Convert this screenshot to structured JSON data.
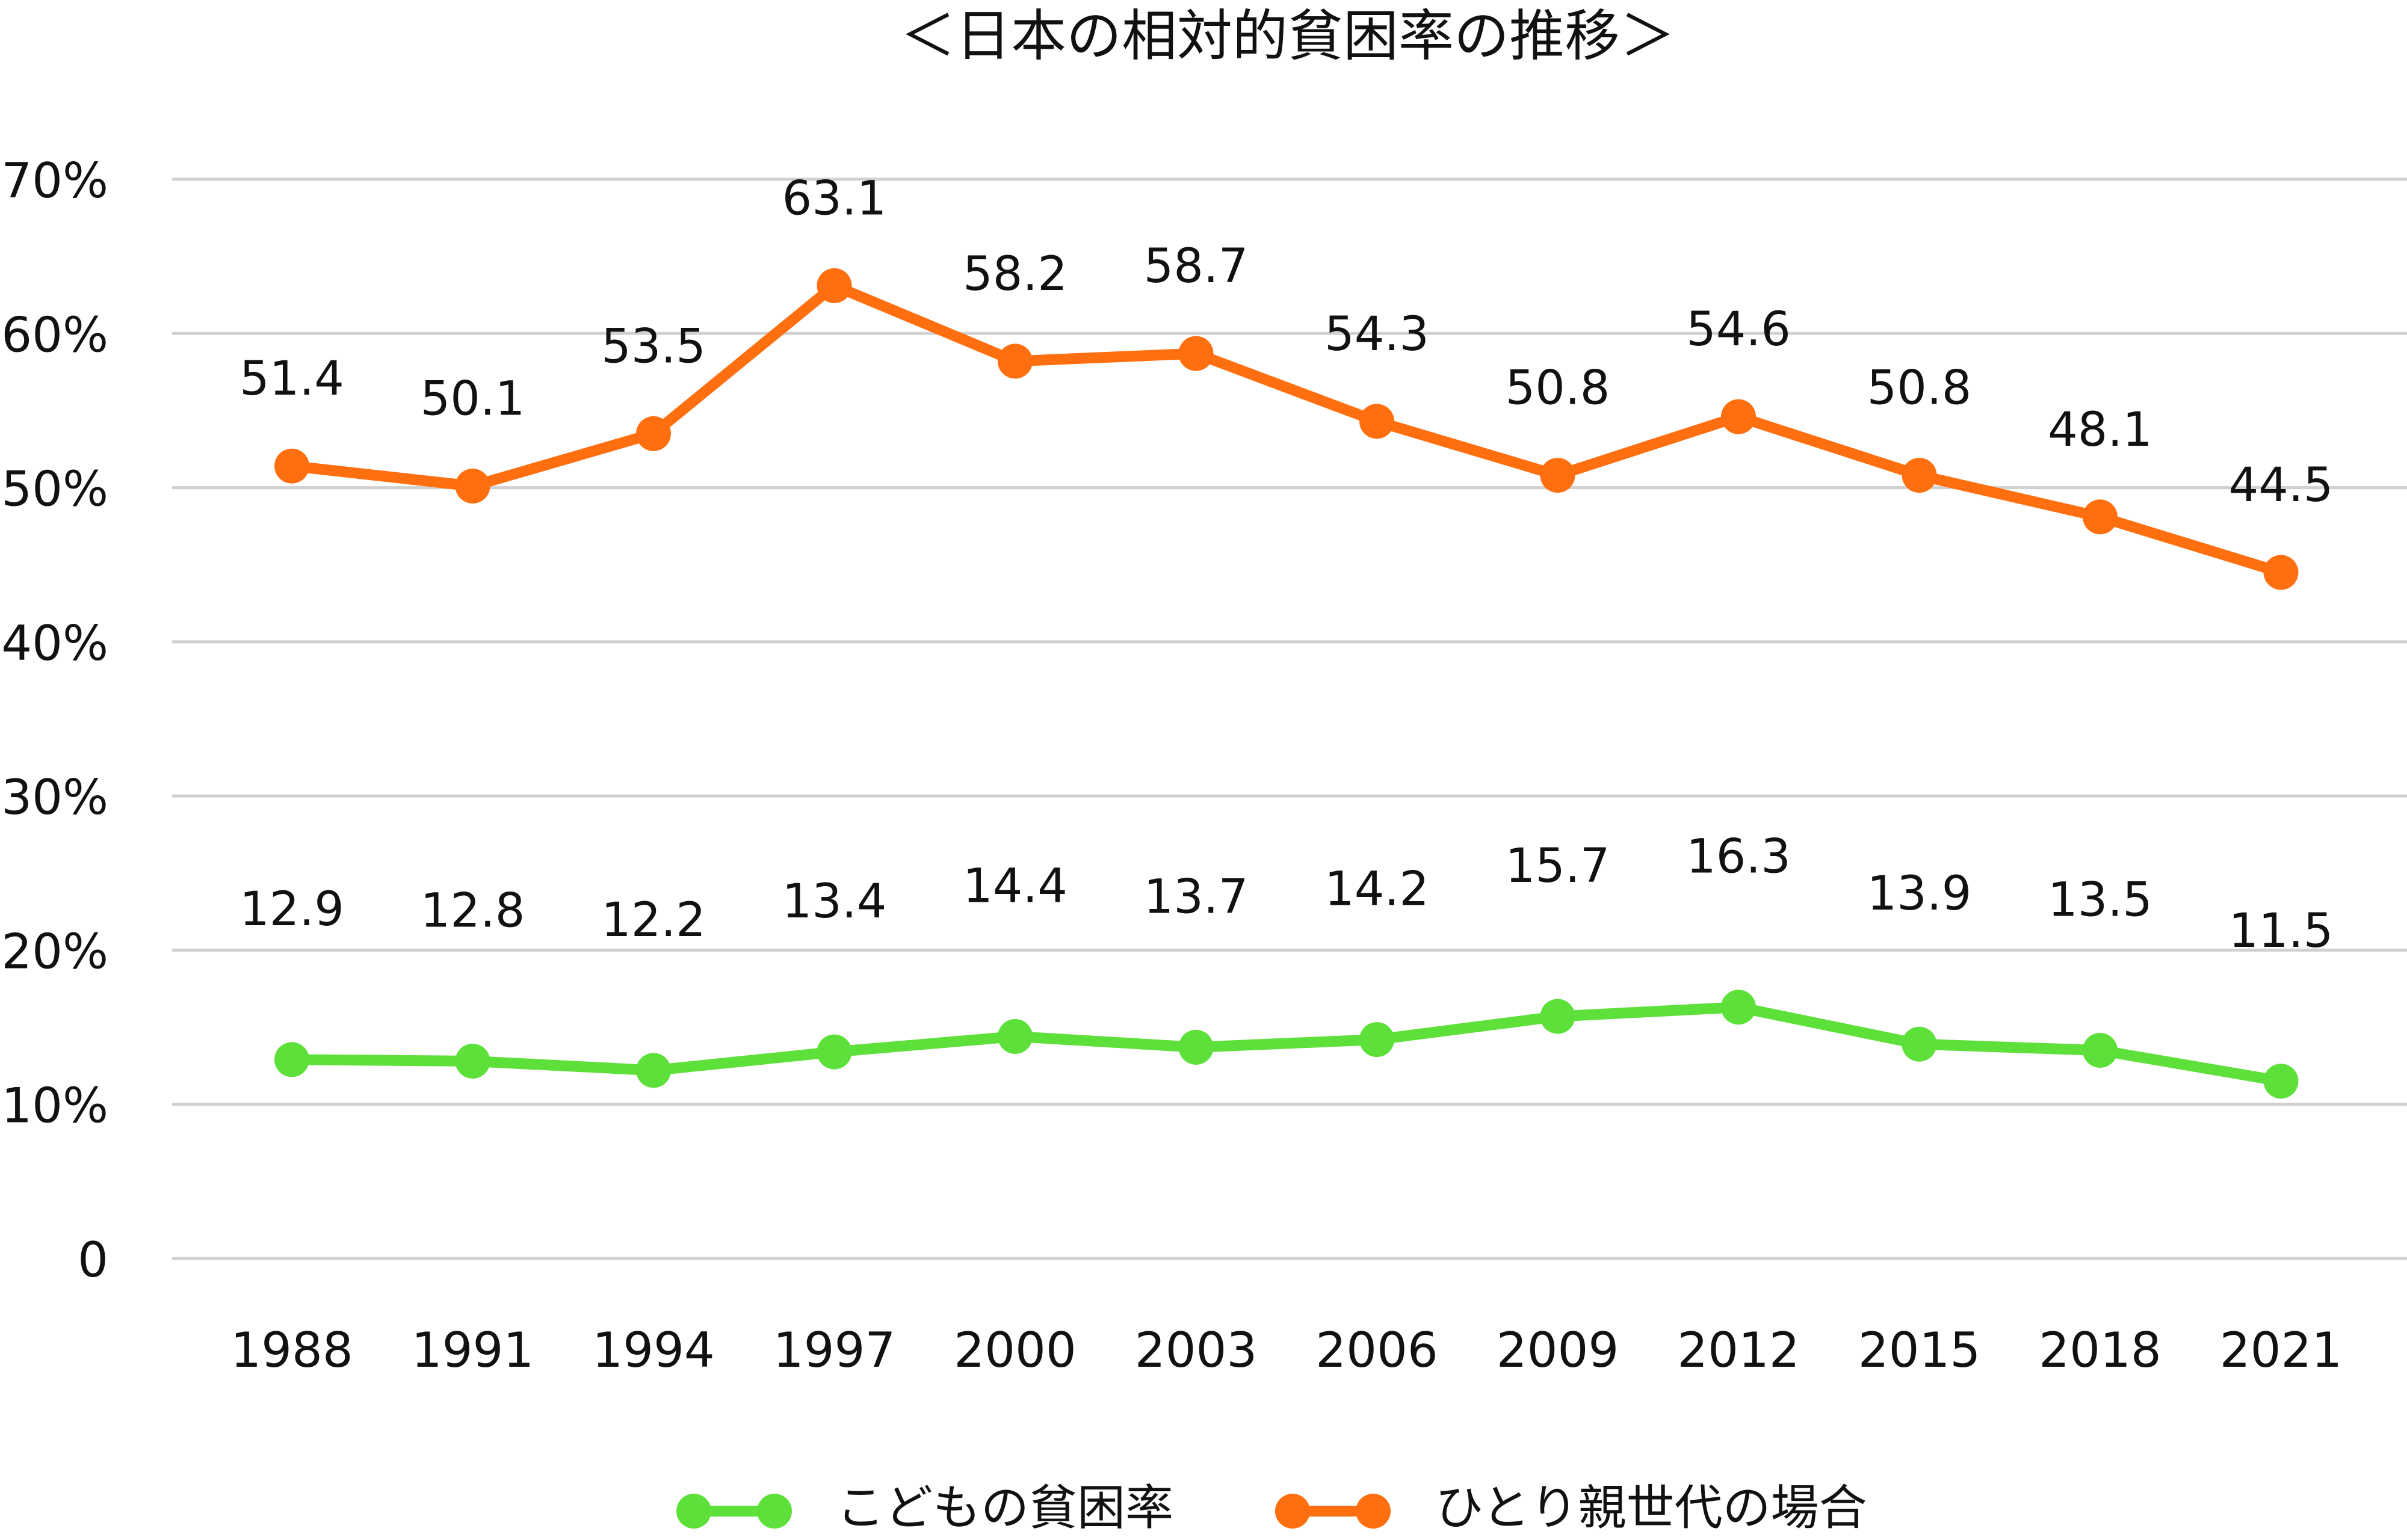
{
  "chart_data": {
    "type": "line",
    "title": "＜日本の相対的貧困率の推移＞",
    "categories": [
      "1988",
      "1991",
      "1994",
      "1997",
      "2000",
      "2003",
      "2006",
      "2009",
      "2012",
      "2015",
      "2018",
      "2021"
    ],
    "series": [
      {
        "name": "こどもの貧困率",
        "color": "#5ee03a",
        "values": [
          12.9,
          12.8,
          12.2,
          13.4,
          14.4,
          13.7,
          14.2,
          15.7,
          16.3,
          13.9,
          13.5,
          11.5
        ]
      },
      {
        "name": "ひとり親世代の場合",
        "color": "#ff6f0f",
        "values": [
          51.4,
          50.1,
          53.5,
          63.1,
          58.2,
          58.7,
          54.3,
          50.8,
          54.6,
          50.8,
          48.1,
          44.5
        ]
      }
    ],
    "ylim": [
      0,
      70
    ],
    "yticks": [
      0,
      {
        "value": 10,
        "label": "10%"
      },
      {
        "value": 20,
        "label": "20%"
      },
      {
        "value": 30,
        "label": "30%"
      },
      {
        "value": 40,
        "label": "40%"
      },
      {
        "value": 50,
        "label": "50%"
      },
      {
        "value": 60,
        "label": "60%"
      },
      {
        "value": 70,
        "label": "70%"
      }
    ],
    "grid": true,
    "legend": "bottom"
  }
}
